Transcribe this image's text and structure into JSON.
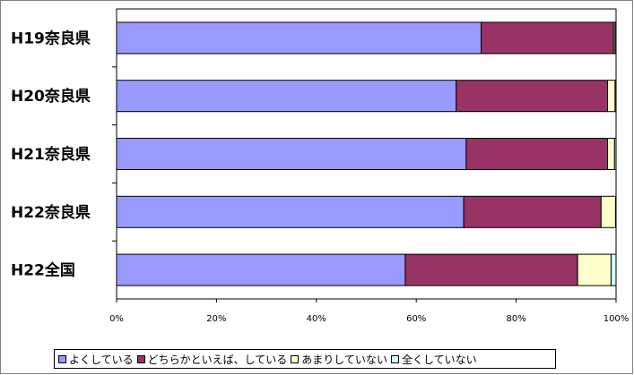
{
  "chart_data": {
    "type": "bar",
    "orientation": "horizontal",
    "stacked": true,
    "percent_stacked": true,
    "categories": [
      "H19奈良県",
      "H20奈良県",
      "H21奈良県",
      "H22奈良県",
      "H22全国"
    ],
    "series": [
      {
        "name": "よくしている",
        "color": "#9999ff",
        "values": [
          73.0,
          68.0,
          70.0,
          69.5,
          57.8
        ]
      },
      {
        "name": "どちらかといえば、している",
        "color": "#993366",
        "values": [
          26.5,
          30.3,
          28.3,
          27.5,
          34.5
        ]
      },
      {
        "name": "あまりしていない",
        "color": "#ffffcc",
        "values": [
          0.3,
          1.5,
          1.4,
          2.9,
          6.7
        ]
      },
      {
        "name": "全くしていない",
        "color": "#ccffff",
        "values": [
          0.2,
          0.2,
          0.3,
          0.1,
          1.0
        ]
      }
    ],
    "xlim": [
      0,
      100
    ],
    "x_ticks": [
      "0%",
      "20%",
      "40%",
      "60%",
      "80%",
      "100%"
    ],
    "grid": false,
    "legend_position": "bottom"
  }
}
